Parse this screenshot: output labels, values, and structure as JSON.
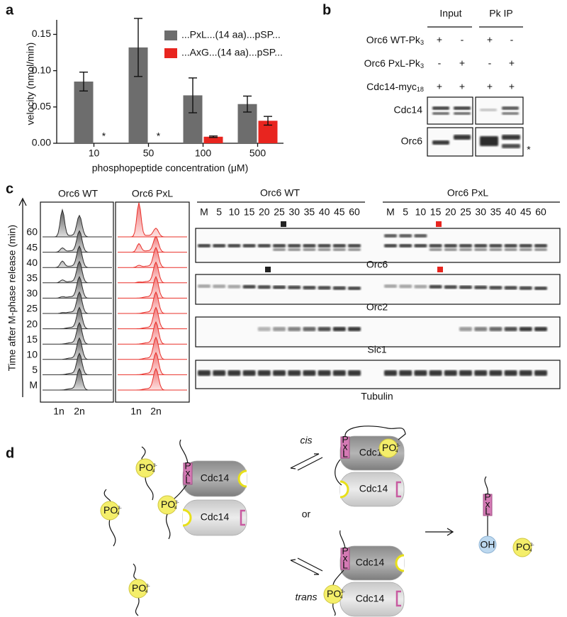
{
  "panel_letters": [
    "a",
    "b",
    "c",
    "d"
  ],
  "chart_data": {
    "type": "bar",
    "ylabel": "velocity (nmol/min)",
    "xlabel": "phosphopeptide concentration (μM)",
    "categories": [
      "10",
      "50",
      "100",
      "500"
    ],
    "series": [
      {
        "name": "...PxL...(14 aa)...pSP...",
        "color": "#6d6d6d",
        "values": [
          0.085,
          0.132,
          0.066,
          0.054
        ],
        "errors": [
          0.013,
          0.04,
          0.024,
          0.011
        ]
      },
      {
        "name": "...AxG...(14 aa)...pSP...",
        "color": "#e8251f",
        "values": [
          null,
          null,
          0.009,
          0.031
        ],
        "errors": [
          null,
          null,
          0.001,
          0.006
        ]
      }
    ],
    "annotations": [
      {
        "text": "*",
        "category": "10"
      },
      {
        "text": "*",
        "category": "50"
      }
    ],
    "ylim": [
      0,
      0.17
    ],
    "yticks": [
      {
        "value": 0,
        "label": "0.00"
      },
      {
        "value": 0.05,
        "label": "0.05"
      },
      {
        "value": 0.1,
        "label": "0.10"
      },
      {
        "value": 0.15,
        "label": "0.15"
      }
    ]
  },
  "panel_b": {
    "columns": [
      "Input",
      "Pk IP"
    ],
    "rows": [
      {
        "label": {
          "text": "Orc6 WT-Pk",
          "sub": "3"
        },
        "signs": [
          "+",
          "-",
          "+",
          "-"
        ]
      },
      {
        "label": {
          "text": "Orc6 PxL-Pk",
          "sub": "3"
        },
        "signs": [
          "-",
          "+",
          "-",
          "+"
        ]
      },
      {
        "label": {
          "text": "Cdc14-myc",
          "sub": "18"
        },
        "signs": [
          "+",
          "+",
          "+",
          "+"
        ]
      }
    ],
    "blots": [
      "Cdc14",
      "Orc6"
    ],
    "asterisk": "*"
  },
  "panel_c": {
    "flow_titles": [
      "Orc6 WT",
      "Orc6 PxL"
    ],
    "ylabel": "Time after M-phase release (min)",
    "times": [
      "M",
      "5",
      "10",
      "15",
      "20",
      "25",
      "30",
      "35",
      "40",
      "45",
      "60"
    ],
    "dna_labels": [
      "1n",
      "2n"
    ],
    "blot_groups": [
      "Orc6 WT",
      "Orc6 PxL"
    ],
    "lanes_wt": [
      "M",
      "5",
      "10",
      "15",
      "20",
      "25",
      "30",
      "35",
      "40",
      "45",
      "60"
    ],
    "lanes_pxl": [
      "M",
      "5",
      "10",
      "15",
      "20",
      "25",
      "30",
      "35",
      "40",
      "45",
      "60"
    ],
    "blots": [
      "Orc6",
      "Orc2",
      "Sic1",
      "Tubulin"
    ]
  },
  "panel_d": {
    "enzyme": "Cdc14",
    "motif": [
      "P",
      "x",
      "L"
    ],
    "phosphate": {
      "text": "PO",
      "sub": "4",
      "sup": "3-"
    },
    "cis": "cis",
    "or": "or",
    "trans": "trans",
    "hydroxyl": "OH"
  }
}
